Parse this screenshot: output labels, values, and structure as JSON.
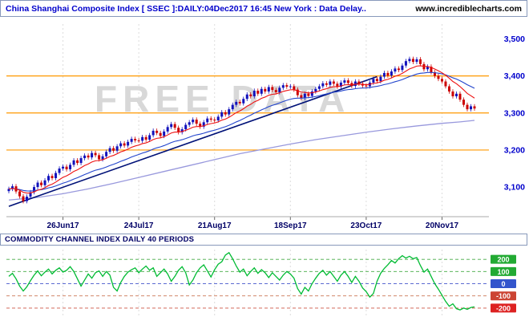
{
  "header": {
    "title": "China Shanghai Composite Index [ SSEC ]:DAILY:04Dec2017 16:45 New York : Data Delay..",
    "site": "www.incrediblecharts.com"
  },
  "watermark": "FREE DATA",
  "colors": {
    "title_blue": "#0000cc",
    "axis_navy": "#000066",
    "level_orange": "#ff9900",
    "grid_gray": "#dcdcdc"
  },
  "chart_data": [
    {
      "type": "candlestick",
      "name": "price-panel",
      "title": "China Shanghai Composite Index [ SSEC ] DAILY 04Dec2017",
      "closes": [
        3095,
        3102,
        3088,
        3075,
        3062,
        3074,
        3086,
        3100,
        3112,
        3105,
        3118,
        3130,
        3124,
        3138,
        3150,
        3155,
        3148,
        3160,
        3172,
        3165,
        3178,
        3185,
        3180,
        3192,
        3186,
        3175,
        3183,
        3195,
        3205,
        3198,
        3210,
        3218,
        3212,
        3222,
        3230,
        3226,
        3225,
        3235,
        3228,
        3240,
        3252,
        3246,
        3238,
        3250,
        3262,
        3270,
        3260,
        3248,
        3256,
        3268,
        3275,
        3282,
        3271,
        3263,
        3275,
        3285,
        3282,
        3280,
        3290,
        3302,
        3296,
        3310,
        3322,
        3330,
        3326,
        3338,
        3350,
        3345,
        3360,
        3352,
        3365,
        3358,
        3370,
        3362,
        3356,
        3368,
        3375,
        3371,
        3372,
        3363,
        3348,
        3340,
        3352,
        3346,
        3358,
        3365,
        3372,
        3380,
        3376,
        3385,
        3379,
        3371,
        3382,
        3388,
        3381,
        3373,
        3385,
        3379,
        3374,
        3372,
        3382,
        3392,
        3386,
        3398,
        3408,
        3401,
        3412,
        3420,
        3416,
        3428,
        3440,
        3446,
        3438,
        3445,
        3432,
        3418,
        3425,
        3410,
        3400,
        3392,
        3385,
        3372,
        3358,
        3345,
        3352,
        3336,
        3322,
        3310,
        3318,
        3312
      ],
      "x_ticks": [
        {
          "label": "26Jun17",
          "index": 15
        },
        {
          "label": "24Jul17",
          "index": 36
        },
        {
          "label": "21Aug17",
          "index": 57
        },
        {
          "label": "18Sep17",
          "index": 78
        },
        {
          "label": "23Oct17",
          "index": 99
        },
        {
          "label": "20Nov17",
          "index": 120
        }
      ],
      "y_ticks": [
        {
          "label": "3,500",
          "value": 3500
        },
        {
          "label": "3,400",
          "value": 3400
        },
        {
          "label": "3,300",
          "value": 3300
        },
        {
          "label": "3,200",
          "value": 3200
        },
        {
          "label": "3,100",
          "value": 3100
        }
      ],
      "ylim": [
        3020,
        3540
      ],
      "levels": {
        "values": [
          3400,
          3300,
          3200
        ],
        "color": "#ff9900"
      },
      "trendline": {
        "from": {
          "index": 0,
          "price": 3048
        },
        "to": {
          "index": 102,
          "price": 3398
        },
        "color": "#001177"
      },
      "long_ma": {
        "color": "#9999dd",
        "points": [
          [
            0,
            3065
          ],
          [
            8,
            3072
          ],
          [
            15,
            3082
          ],
          [
            22,
            3095
          ],
          [
            29,
            3110
          ],
          [
            36,
            3126
          ],
          [
            43,
            3142
          ],
          [
            50,
            3158
          ],
          [
            57,
            3174
          ],
          [
            64,
            3190
          ],
          [
            71,
            3203
          ],
          [
            78,
            3216
          ],
          [
            85,
            3228
          ],
          [
            92,
            3238
          ],
          [
            99,
            3248
          ],
          [
            106,
            3257
          ],
          [
            113,
            3265
          ],
          [
            120,
            3272
          ],
          [
            125,
            3276
          ],
          [
            129,
            3280
          ]
        ]
      },
      "ma_fast": {
        "period": 10,
        "color": "#ee1111"
      },
      "ma_slow": {
        "period": 24,
        "color": "#2244cc"
      },
      "candle_up_color": "#1111bb",
      "candle_down_color": "#cc0000"
    },
    {
      "type": "line",
      "name": "cci-panel",
      "label": "COMMODITY CHANNEL INDEX DAILY 40 PERIODS",
      "values": [
        60,
        85,
        40,
        -20,
        -60,
        -25,
        25,
        70,
        105,
        65,
        95,
        120,
        80,
        110,
        130,
        95,
        110,
        140,
        100,
        40,
        -20,
        30,
        80,
        45,
        90,
        105,
        60,
        100,
        70,
        -30,
        -60,
        10,
        60,
        95,
        115,
        130,
        90,
        120,
        145,
        110,
        130,
        60,
        90,
        120,
        80,
        20,
        60,
        110,
        140,
        90,
        -10,
        30,
        90,
        130,
        155,
        105,
        55,
        115,
        160,
        180,
        235,
        255,
        205,
        145,
        95,
        120,
        65,
        100,
        130,
        85,
        115,
        90,
        50,
        90,
        60,
        30,
        70,
        100,
        80,
        45,
        -40,
        -85,
        -30,
        -60,
        0,
        45,
        85,
        110,
        70,
        100,
        60,
        20,
        70,
        100,
        60,
        10,
        60,
        20,
        -35,
        -65,
        -110,
        -80,
        20,
        85,
        125,
        155,
        190,
        170,
        205,
        230,
        210,
        225,
        205,
        215,
        150,
        95,
        120,
        60,
        0,
        -45,
        -95,
        -145,
        -185,
        -165,
        -205,
        -215,
        -200,
        -210,
        -195,
        -190
      ],
      "gridlines": [
        {
          "value": 200,
          "label": "200",
          "color": "#44aa44",
          "label_bg": "#22aa33"
        },
        {
          "value": 100,
          "label": "100",
          "color": "#44aa44",
          "label_bg": "#22aa33"
        },
        {
          "value": 0,
          "label": "0",
          "color": "#4455cc",
          "label_bg": "#3355cc"
        },
        {
          "value": -100,
          "label": "-100",
          "color": "#cc7755",
          "label_bg": "#cc4433"
        },
        {
          "value": -200,
          "label": "-200",
          "color": "#cc5544",
          "label_bg": "#dd2222"
        }
      ],
      "ylim": [
        -260,
        280
      ],
      "line_color": "#00bb33"
    }
  ]
}
